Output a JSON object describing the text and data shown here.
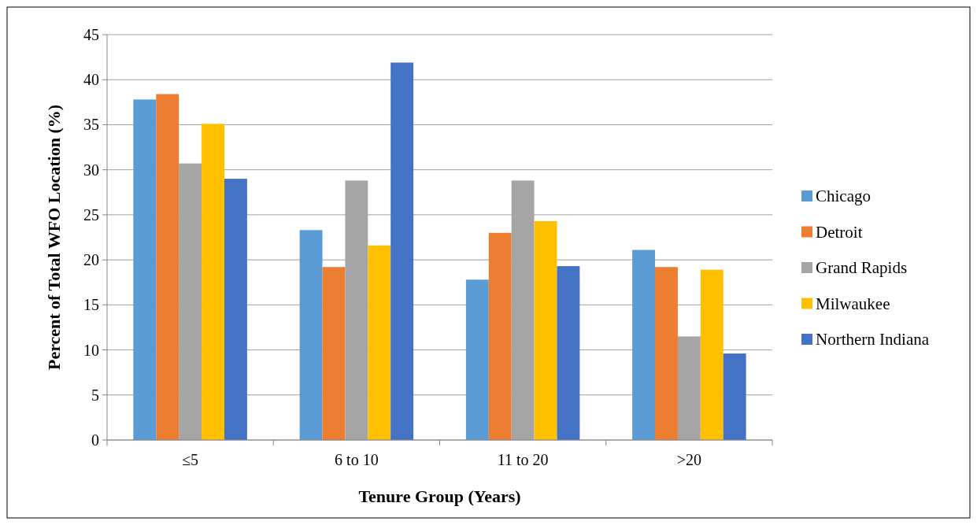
{
  "chart_data": {
    "type": "bar",
    "xlabel": "Tenure Group (Years)",
    "ylabel": "Percent of Total WFO Location (%)",
    "categories": [
      "≤5",
      "6 to 10",
      "11 to 20",
      ">20"
    ],
    "series": [
      {
        "name": "Chicago",
        "color": "#5b9bd5",
        "values": [
          37.8,
          23.3,
          17.8,
          21.1
        ]
      },
      {
        "name": "Detroit",
        "color": "#ed7d31",
        "values": [
          38.4,
          19.2,
          23.0,
          19.2
        ]
      },
      {
        "name": "Grand Rapids",
        "color": "#a5a5a5",
        "values": [
          30.7,
          28.8,
          28.8,
          11.5
        ]
      },
      {
        "name": "Milwaukee",
        "color": "#ffc000",
        "values": [
          35.1,
          21.6,
          24.3,
          18.9
        ]
      },
      {
        "name": "Northern Indiana",
        "color": "#4472c4",
        "values": [
          29.0,
          41.9,
          19.3,
          9.6
        ]
      }
    ],
    "ylim": [
      0,
      45
    ],
    "yticks": [
      0,
      5,
      10,
      15,
      20,
      25,
      30,
      35,
      40,
      45
    ],
    "grid": "y",
    "legend": "right"
  }
}
